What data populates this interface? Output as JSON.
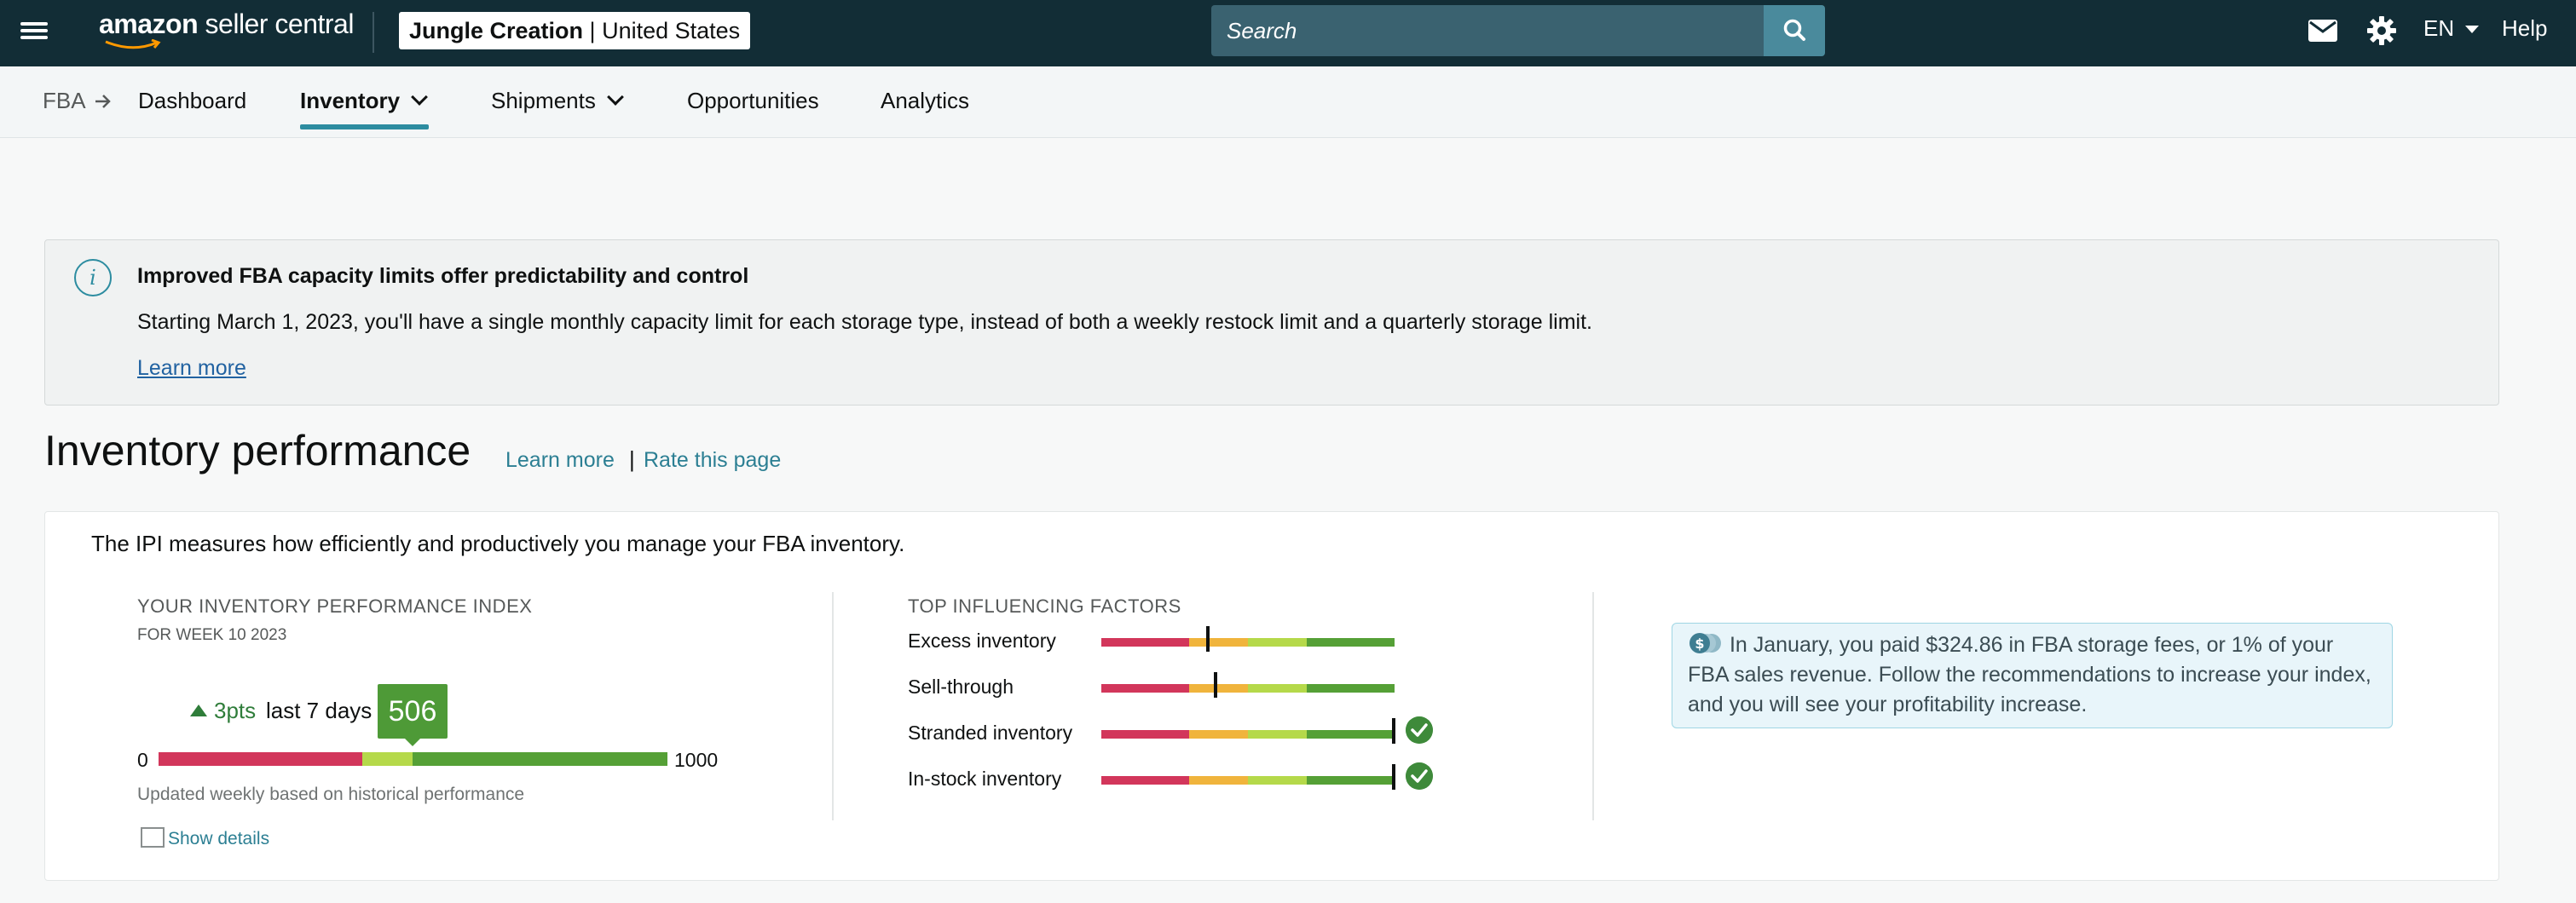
{
  "header": {
    "logo_text": "amazon",
    "logo_suffix": "seller central",
    "account_name": "Jungle Creation",
    "account_sep": "|",
    "account_region": "United States",
    "search_placeholder": "Search",
    "language": "EN",
    "help": "Help",
    "brand_color": "#122d36",
    "accent": "#2c8ca0"
  },
  "nav": {
    "breadcrumb_root": "FBA",
    "items": [
      {
        "label": "Dashboard"
      },
      {
        "label": "Inventory"
      },
      {
        "label": "Shipments"
      },
      {
        "label": "Opportunities"
      },
      {
        "label": "Analytics"
      }
    ],
    "active": "Inventory"
  },
  "alert": {
    "title": "Improved FBA capacity limits offer predictability and control",
    "body": "Starting March 1, 2023, you'll have a single monthly capacity limit for each storage type, instead of both a weekly restock limit and a quarterly storage limit.",
    "link": "Learn more"
  },
  "page": {
    "title": "Inventory performance",
    "learn_more": "Learn more",
    "separator": "|",
    "rate_page": "Rate this page"
  },
  "ipi_card": {
    "description": "The IPI measures how efficiently and productively you manage your FBA inventory.",
    "index_title": "YOUR INVENTORY PERFORMANCE INDEX",
    "index_subtitle": "FOR WEEK 10 2023",
    "delta": "3pts",
    "delta_period": "last 7 days",
    "score": "506",
    "score_value": 506,
    "min": "0",
    "max": "1000",
    "updated_note": "Updated weekly based on historical performance",
    "show_details": "Show details",
    "factors_title": "TOP INFLUENCING FACTORS",
    "factors": [
      {
        "label": "Excess inventory",
        "level": 0.36,
        "check": false
      },
      {
        "label": "Sell-through",
        "level": 0.39,
        "check": false
      },
      {
        "label": "Stranded inventory",
        "level": 1.0,
        "check": true
      },
      {
        "label": "In-stock inventory",
        "level": 1.0,
        "check": true
      }
    ],
    "tip": "In January, you paid $324.86 in FBA storage fees, or 1% of your FBA sales revenue. Follow the recommendations to increase your index, and you will see your profitability increase.",
    "colors": {
      "red": "#d2365b",
      "orange": "#f0b43c",
      "lightgreen": "#b5d94a",
      "green": "#55a036"
    }
  }
}
